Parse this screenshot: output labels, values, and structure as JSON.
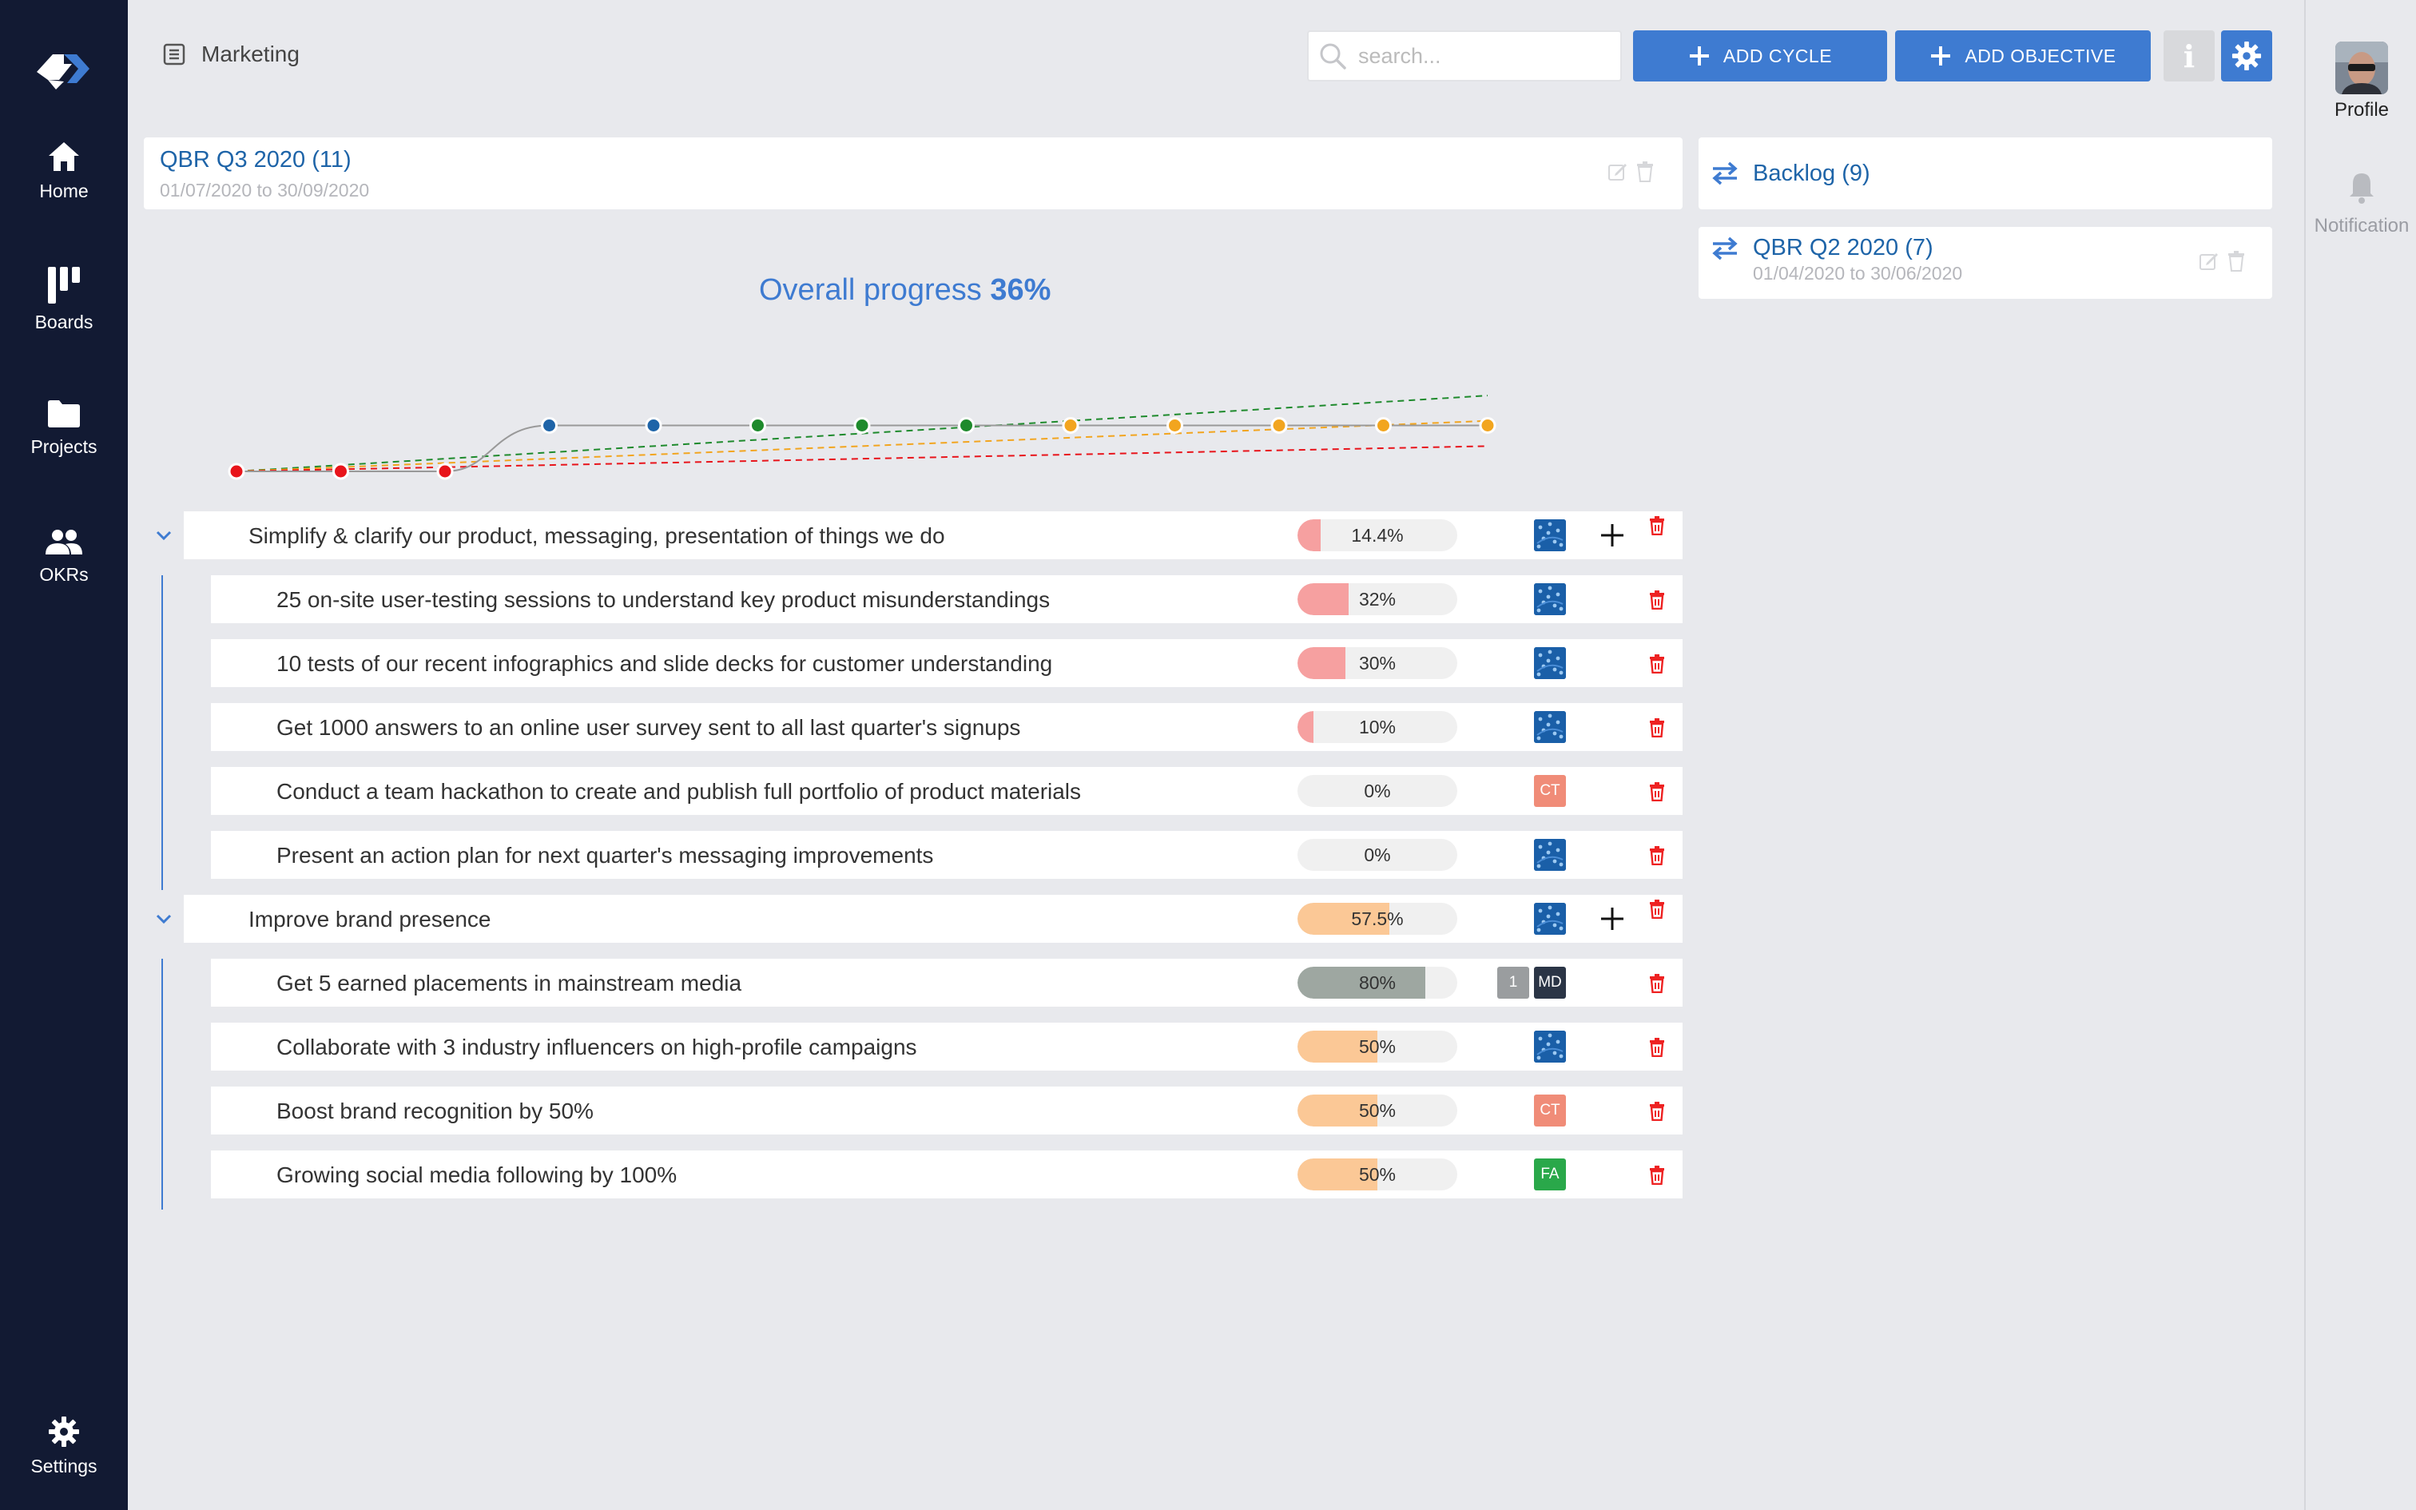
{
  "nav": {
    "items": [
      {
        "label": "Home",
        "icon": "home-icon"
      },
      {
        "label": "Boards",
        "icon": "boards-icon"
      },
      {
        "label": "Projects",
        "icon": "folder-icon"
      },
      {
        "label": "OKRs",
        "icon": "people-icon"
      }
    ],
    "settings_label": "Settings"
  },
  "header": {
    "breadcrumb": "Marketing",
    "search_placeholder": "search...",
    "add_cycle_label": "ADD CYCLE",
    "add_objective_label": "ADD OBJECTIVE",
    "info_label": "i"
  },
  "right_panel": {
    "profile_label": "Profile",
    "notification_label": "Notification"
  },
  "current_cycle": {
    "title": "QBR Q3 2020 (11)",
    "dates": "01/07/2020 to 30/09/2020"
  },
  "other_cycles": [
    {
      "title": "Backlog (9)",
      "dates": ""
    },
    {
      "title": "QBR Q2 2020 (7)",
      "dates": "01/04/2020 to 30/06/2020"
    }
  ],
  "overall": {
    "label": "Overall progress",
    "value": "36%"
  },
  "colors": {
    "accent": "#3e7bd1",
    "sidebar": "#121a33",
    "red": "#e8141b",
    "blue": "#1e64a8",
    "green": "#1e8a2c",
    "orange": "#f2a51f",
    "progress_red": "#f6a0a0",
    "progress_orange": "#fbc896",
    "progress_gray": "#9ea7a1"
  },
  "chart_data": {
    "type": "line",
    "points": [
      {
        "y": 0,
        "color": "red"
      },
      {
        "y": 0,
        "color": "red"
      },
      {
        "y": 0,
        "color": "red"
      },
      {
        "y": 1,
        "color": "blue"
      },
      {
        "y": 1,
        "color": "blue"
      },
      {
        "y": 1,
        "color": "green"
      },
      {
        "y": 1,
        "color": "green"
      },
      {
        "y": 1,
        "color": "green"
      },
      {
        "y": 1,
        "color": "orange"
      },
      {
        "y": 1,
        "color": "orange"
      },
      {
        "y": 1,
        "color": "orange"
      },
      {
        "y": 1,
        "color": "orange"
      },
      {
        "y": 1,
        "color": "orange"
      }
    ],
    "trend_lines": [
      {
        "color": "green",
        "from": 0,
        "to": 1.65
      },
      {
        "color": "orange",
        "from": 0,
        "to": 1.1
      },
      {
        "color": "red",
        "from": 0,
        "to": 0.55
      }
    ],
    "ylim": [
      0,
      1.7
    ],
    "grid": false
  },
  "objectives": [
    {
      "title": "Simplify & clarify our product, messaging, presentation of things we do",
      "progress": 14.4,
      "progress_label": "14.4%",
      "fill": "#f6a0a0",
      "owner": {
        "type": "avatar"
      },
      "key_results": [
        {
          "title": "25 on-site user-testing sessions to understand key product misunderstandings",
          "progress": 32,
          "progress_label": "32%",
          "fill": "#f6a0a0",
          "owner": {
            "type": "avatar"
          }
        },
        {
          "title": "10 tests of our recent infographics and slide decks for customer understanding",
          "progress": 30,
          "progress_label": "30%",
          "fill": "#f6a0a0",
          "owner": {
            "type": "avatar"
          }
        },
        {
          "title": "Get 1000 answers to an online user survey sent to all last quarter's signups",
          "progress": 10,
          "progress_label": "10%",
          "fill": "#f6a0a0",
          "owner": {
            "type": "avatar"
          }
        },
        {
          "title": "Conduct a team hackathon to create and publish full portfolio of product materials",
          "progress": 0,
          "progress_label": "0%",
          "fill": "#f6a0a0",
          "owner": {
            "type": "initials",
            "text": "CT",
            "color": "#f08c78"
          }
        },
        {
          "title": "Present an action plan for next quarter's messaging improvements",
          "progress": 0,
          "progress_label": "0%",
          "fill": "#f6a0a0",
          "owner": {
            "type": "avatar"
          }
        }
      ]
    },
    {
      "title": "Improve brand presence",
      "progress": 57.5,
      "progress_label": "57.5%",
      "fill": "#fbc896",
      "owner": {
        "type": "avatar"
      },
      "key_results": [
        {
          "title": "Get 5 earned placements in mainstream media",
          "progress": 80,
          "progress_label": "80%",
          "fill": "#9ea7a1",
          "owner": {
            "type": "initials",
            "text": "MD",
            "color": "#2b3546"
          },
          "extra_badge": "1"
        },
        {
          "title": "Collaborate with 3 industry influencers on high-profile campaigns",
          "progress": 50,
          "progress_label": "50%",
          "fill": "#fbc896",
          "owner": {
            "type": "avatar"
          }
        },
        {
          "title": "Boost brand recognition by 50%",
          "progress": 50,
          "progress_label": "50%",
          "fill": "#fbc896",
          "owner": {
            "type": "initials",
            "text": "CT",
            "color": "#f08c78"
          }
        },
        {
          "title": "Growing social media following by 100%",
          "progress": 50,
          "progress_label": "50%",
          "fill": "#fbc896",
          "owner": {
            "type": "initials",
            "text": "FA",
            "color": "#2aa84a"
          }
        }
      ]
    }
  ]
}
